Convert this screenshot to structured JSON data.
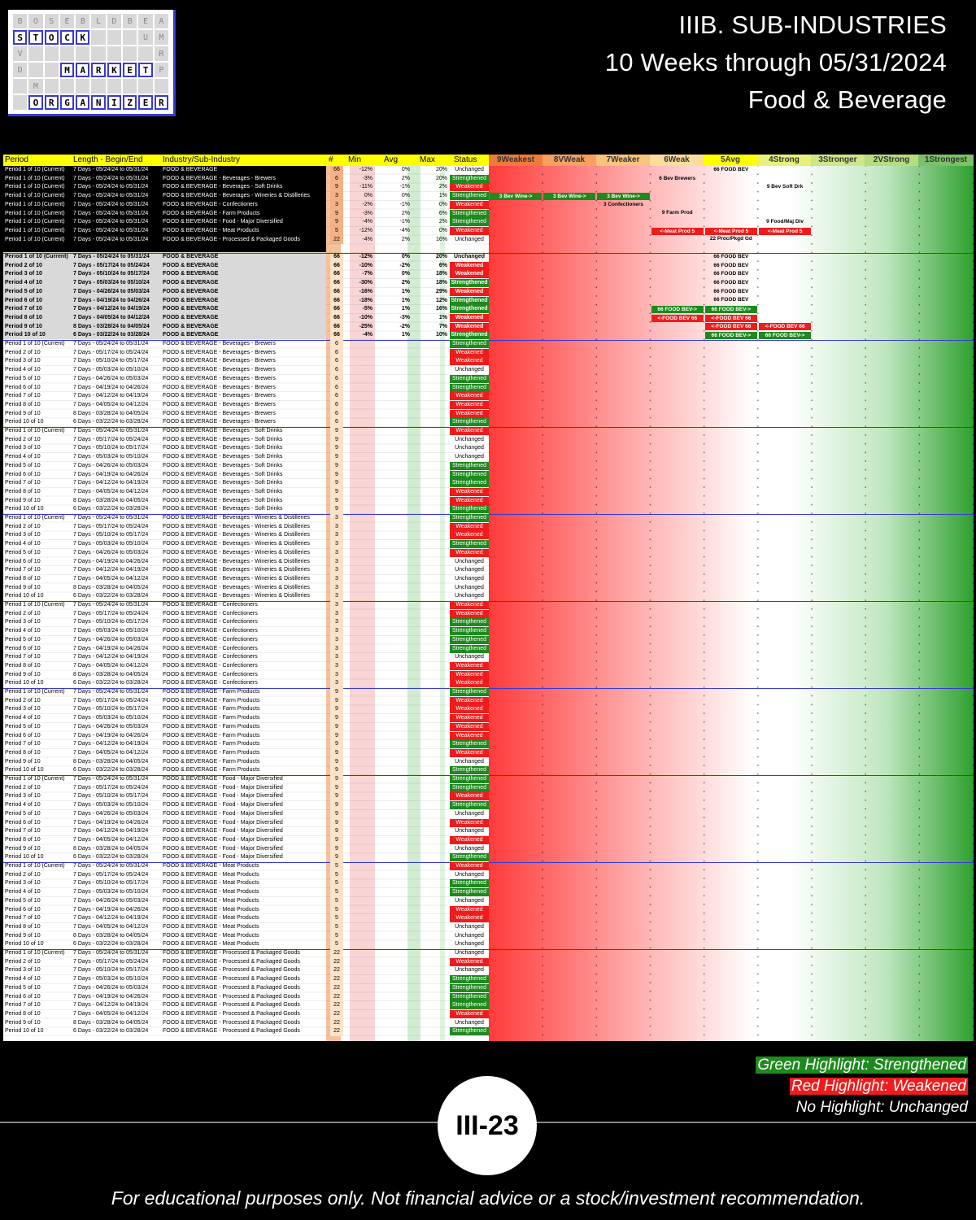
{
  "logo": {
    "rows": [
      [
        "B",
        "O",
        "S",
        "E",
        "B",
        "L",
        "D",
        "B",
        "E",
        "A"
      ],
      [
        "S",
        "T",
        "O",
        "C",
        "K",
        "",
        "",
        "",
        "U",
        "M"
      ],
      [
        "V",
        "",
        "",
        "",
        "",
        "",
        "",
        "",
        "",
        "R"
      ],
      [
        "D",
        "",
        "",
        "M",
        "A",
        "R",
        "K",
        "E",
        "T",
        "P"
      ],
      [
        "",
        "M",
        "",
        "",
        "",
        "",
        "",
        "",
        "",
        ""
      ],
      [
        "",
        "O",
        "R",
        "G",
        "A",
        "N",
        "I",
        "Z",
        "E",
        "R"
      ]
    ],
    "words": [
      "STOCK",
      "MARKET",
      "ORGANIZER"
    ]
  },
  "title": {
    "line1": "IIIB. SUB-INDUSTRIES",
    "line2": "10 Weeks through 05/31/2024",
    "line3": "Food & Beverage"
  },
  "table": {
    "headers": {
      "period": "Period",
      "length": "Length - Begin/End",
      "industry": "Industry/Sub-Industry",
      "count": "#",
      "min": "Min",
      "avg": "Avg",
      "max": "Max",
      "status": "Status",
      "zones": [
        "9Weakest",
        "8VWeak",
        "7Weaker",
        "6Weak",
        "5Avg",
        "4Strong",
        "3Stronger",
        "2VStrong",
        "1Strongest"
      ]
    },
    "rows": [
      [
        "Period 1 of 10 (Current)",
        "7 Days - 05/24/24 to 05/31/24",
        "FOOD & BEVERAGE",
        "66",
        "-12%",
        "0%",
        "20%",
        "Unchanged"
      ],
      [
        "Period 1 of 10 (Current)",
        "7 Days - 05/24/24 to 05/31/24",
        "FOOD & BEVERAGE - Beverages - Brewers",
        "6",
        "-3%",
        "2%",
        "20%",
        "Strengthened"
      ],
      [
        "Period 1 of 10 (Current)",
        "7 Days - 05/24/24 to 05/31/24",
        "FOOD & BEVERAGE - Beverages - Soft Drinks",
        "9",
        "-11%",
        "-1%",
        "2%",
        "Weakened"
      ],
      [
        "Period 1 of 10 (Current)",
        "7 Days - 05/24/24 to 05/31/24",
        "FOOD & BEVERAGE - Beverages - Wineries & Distilleries",
        "3",
        "0%",
        "0%",
        "1%",
        "Strengthened"
      ],
      [
        "Period 1 of 10 (Current)",
        "7 Days - 05/24/24 to 05/31/24",
        "FOOD & BEVERAGE - Confectioners",
        "3",
        "-2%",
        "-1%",
        "0%",
        "Weakened"
      ],
      [
        "Period 1 of 10 (Current)",
        "7 Days - 05/24/24 to 05/31/24",
        "FOOD & BEVERAGE - Farm Products",
        "9",
        "-3%",
        "2%",
        "6%",
        "Strengthened"
      ],
      [
        "Period 1 of 10 (Current)",
        "7 Days - 05/24/24 to 05/31/24",
        "FOOD & BEVERAGE - Food - Major Diversified",
        "9",
        "-4%",
        "-1%",
        "2%",
        "Strengthened"
      ],
      [
        "Period 1 of 10 (Current)",
        "7 Days - 05/24/24 to 05/31/24",
        "FOOD & BEVERAGE - Meat Products",
        "5",
        "-12%",
        "-4%",
        "0%",
        "Weakened"
      ],
      [
        "Period 1 of 10 (Current)",
        "7 Days - 05/24/24 to 05/31/24",
        "FOOD & BEVERAGE - Processed & Packaged Goods",
        "22",
        "-4%",
        "2%",
        "16%",
        "Unchanged"
      ],
      [
        "Period 1 of 10 (Current)",
        "7 Days - 05/24/24 to 05/31/24",
        "",
        "",
        "",
        "",
        "",
        ""
      ],
      [
        "Period 1 of 10 (Current)",
        "7 Days - 05/24/24 to 05/31/24",
        "FOOD & BEVERAGE",
        "66",
        "-12%",
        "0%",
        "20%",
        "Unchanged"
      ],
      [
        "Period 2 of 10",
        "7 Days - 05/17/24 to 05/24/24",
        "FOOD & BEVERAGE",
        "66",
        "-10%",
        "-2%",
        "6%",
        "Weakened"
      ],
      [
        "Period 3 of 10",
        "7 Days - 05/10/24 to 05/17/24",
        "FOOD & BEVERAGE",
        "66",
        "-7%",
        "0%",
        "18%",
        "Weakened"
      ],
      [
        "Period 4 of 10",
        "7 Days - 05/03/24 to 05/10/24",
        "FOOD & BEVERAGE",
        "66",
        "-30%",
        "2%",
        "18%",
        "Strengthened"
      ],
      [
        "Period 5 of 10",
        "7 Days - 04/26/24 to 05/03/24",
        "FOOD & BEVERAGE",
        "66",
        "-16%",
        "1%",
        "29%",
        "Weakened"
      ],
      [
        "Period 6 of 10",
        "7 Days - 04/19/24 to 04/26/24",
        "FOOD & BEVERAGE",
        "66",
        "-18%",
        "1%",
        "12%",
        "Strengthened"
      ],
      [
        "Period 7 of 10",
        "7 Days - 04/12/24 to 04/19/24",
        "FOOD & BEVERAGE",
        "66",
        "-5%",
        "1%",
        "16%",
        "Strengthened"
      ],
      [
        "Period 8 of 10",
        "7 Days - 04/05/24 to 04/12/24",
        "FOOD & BEVERAGE",
        "66",
        "-10%",
        "-3%",
        "1%",
        "Weakened"
      ],
      [
        "Period 9 of 10",
        "8 Days - 03/28/24 to 04/05/24",
        "FOOD & BEVERAGE",
        "66",
        "-25%",
        "-2%",
        "7%",
        "Weakened"
      ],
      [
        "Period 10 of 10",
        "6 Days - 03/22/24 to 03/28/24",
        "FOOD & BEVERAGE",
        "66",
        "-4%",
        "1%",
        "10%",
        "Strengthened"
      ]
    ],
    "zone_labels": [
      {
        "row": 0,
        "col": 4,
        "text": "66 FOOD BEV",
        "kind": "n"
      },
      {
        "row": 1,
        "col": 3,
        "text": "6 Bev Brewers",
        "kind": "n"
      },
      {
        "row": 2,
        "col": 5,
        "text": "9 Bev Soft Drk",
        "kind": "n"
      },
      {
        "row": 3,
        "col": 0,
        "text": "3 Bev Wine->",
        "kind": "g"
      },
      {
        "row": 3,
        "col": 1,
        "text": "3 Bev Wine->",
        "kind": "g"
      },
      {
        "row": 3,
        "col": 2,
        "text": "3 Bev Wine->",
        "kind": "g"
      },
      {
        "row": 4,
        "col": 2,
        "text": "3 Confectioners",
        "kind": "n"
      },
      {
        "row": 5,
        "col": 3,
        "text": "9 Farm Prod",
        "kind": "n"
      },
      {
        "row": 6,
        "col": 5,
        "text": "9 Food/Maj Div",
        "kind": "n"
      },
      {
        "row": 7,
        "col": 3,
        "text": "<-Meat Prod 5",
        "kind": "r"
      },
      {
        "row": 7,
        "col": 4,
        "text": "<-Meat Prod 5",
        "kind": "r"
      },
      {
        "row": 7,
        "col": 5,
        "text": "<-Meat Prod 5",
        "kind": "r"
      },
      {
        "row": 8,
        "col": 4,
        "text": "22 Proc/Pkgd Gd",
        "kind": "n"
      },
      {
        "row": 10,
        "col": 4,
        "text": "66 FOOD BEV",
        "kind": "n"
      },
      {
        "row": 11,
        "col": 4,
        "text": "66 FOOD BEV",
        "kind": "n"
      },
      {
        "row": 12,
        "col": 4,
        "text": "66 FOOD BEV",
        "kind": "n"
      },
      {
        "row": 13,
        "col": 4,
        "text": "66 FOOD BEV",
        "kind": "n"
      },
      {
        "row": 14,
        "col": 4,
        "text": "66 FOOD BEV",
        "kind": "n"
      },
      {
        "row": 15,
        "col": 4,
        "text": "66 FOOD BEV",
        "kind": "n"
      },
      {
        "row": 16,
        "col": 3,
        "text": "66 FOOD BEV->",
        "kind": "g"
      },
      {
        "row": 16,
        "col": 4,
        "text": "66 FOOD BEV->",
        "kind": "g"
      },
      {
        "row": 17,
        "col": 3,
        "text": "<-FOOD BEV 66",
        "kind": "r"
      },
      {
        "row": 17,
        "col": 4,
        "text": "<-FOOD BEV 66",
        "kind": "r"
      },
      {
        "row": 18,
        "col": 4,
        "text": "<-FOOD BEV 66",
        "kind": "r"
      },
      {
        "row": 18,
        "col": 5,
        "text": "<-FOOD BEV 66",
        "kind": "r"
      },
      {
        "row": 19,
        "col": 4,
        "text": "66 FOOD BEV->",
        "kind": "g"
      },
      {
        "row": 19,
        "col": 5,
        "text": "66 FOOD BEV->",
        "kind": "g"
      }
    ],
    "group_summary": [
      {
        "name": "FOOD & BEVERAGE - Beverages - Brewers",
        "count": "6",
        "status_seq": [
          "Strengthened",
          "Weakened",
          "Weakened",
          "Unchanged",
          "Strengthened",
          "Strengthened",
          "Weakened",
          "Weakened",
          "Weakened",
          "Strengthened"
        ]
      },
      {
        "name": "FOOD & BEVERAGE - Beverages - Soft Drinks",
        "count": "9",
        "status_seq": [
          "Weakened",
          "Unchanged",
          "Unchanged",
          "Unchanged",
          "Strengthened",
          "Strengthened",
          "Strengthened",
          "Weakened",
          "Weakened",
          "Strengthened"
        ]
      },
      {
        "name": "FOOD & BEVERAGE - Beverages - Wineries & Distilleries",
        "count": "3",
        "status_seq": [
          "Strengthened",
          "Weakened",
          "Weakened",
          "Strengthened",
          "Weakened",
          "Unchanged",
          "Unchanged",
          "Unchanged",
          "Unchanged",
          "Unchanged"
        ]
      },
      {
        "name": "FOOD & BEVERAGE - Confectioners",
        "count": "3",
        "status_seq": [
          "Weakened",
          "Weakened",
          "Strengthened",
          "Strengthened",
          "Strengthened",
          "Strengthened",
          "Unchanged",
          "Weakened",
          "Weakened",
          "Weakened"
        ]
      },
      {
        "name": "FOOD & BEVERAGE - Farm Products",
        "count": "9",
        "status_seq": [
          "Strengthened",
          "Weakened",
          "Weakened",
          "Weakened",
          "Weakened",
          "Weakened",
          "Strengthened",
          "Weakened",
          "Unchanged",
          "Strengthened"
        ]
      },
      {
        "name": "FOOD & BEVERAGE - Food - Major Diversified",
        "count": "9",
        "status_seq": [
          "Strengthened",
          "Strengthened",
          "Weakened",
          "Strengthened",
          "Unchanged",
          "Weakened",
          "Unchanged",
          "Weakened",
          "Unchanged",
          "Strengthened"
        ]
      },
      {
        "name": "FOOD & BEVERAGE - Meat Products",
        "count": "5",
        "status_seq": [
          "Weakened",
          "Unchanged",
          "Strengthened",
          "Strengthened",
          "Unchanged",
          "Weakened",
          "Weakened",
          "Unchanged",
          "Unchanged",
          "Unchanged"
        ]
      },
      {
        "name": "FOOD & BEVERAGE - Processed & Packaged Goods",
        "count": "22",
        "status_seq": [
          "Unchanged",
          "Weakened",
          "Unchanged",
          "Strengthened",
          "Strengthened",
          "Strengthened",
          "Strengthened",
          "Weakened",
          "Unchanged",
          "Strengthened"
        ]
      }
    ]
  },
  "legend": {
    "green": "Green Highlight: Strengthened",
    "red": "Red Highlight: Weakened",
    "none": "No Highlight: Unchanged"
  },
  "page_number": "III-23",
  "footer": "For educational purposes only. Not financial advice or a stock/investment recommendation."
}
